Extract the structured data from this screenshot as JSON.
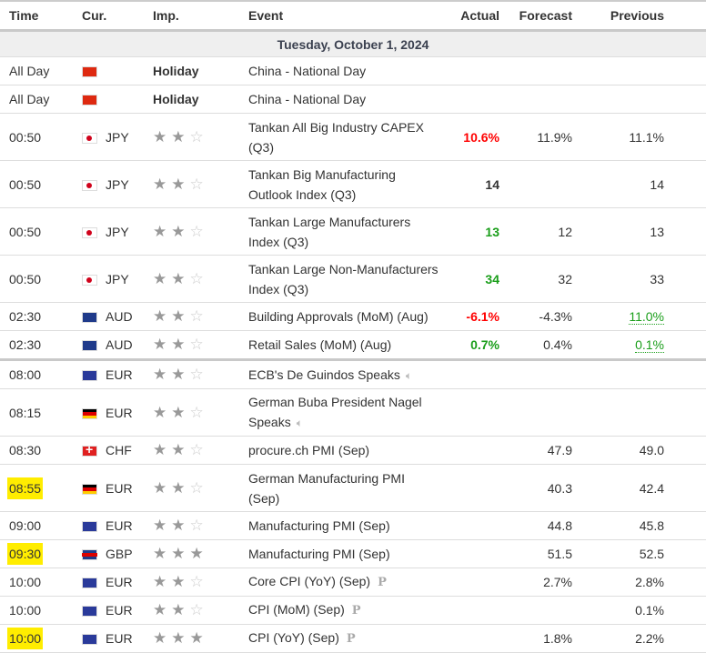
{
  "headers": {
    "time": "Time",
    "cur": "Cur.",
    "imp": "Imp.",
    "event": "Event",
    "actual": "Actual",
    "forecast": "Forecast",
    "previous": "Previous"
  },
  "date": "Tuesday, October 1, 2024",
  "colors": {
    "highlight": "#ffed00",
    "negative": "#ff0000",
    "positive": "#1a9e1a"
  },
  "rows": [
    {
      "time": "All Day",
      "flag": "cn",
      "cur": "",
      "imp_label": "Holiday",
      "event": "China - National Day",
      "actual": "",
      "forecast": "",
      "previous": ""
    },
    {
      "time": "All Day",
      "flag": "cn",
      "cur": "",
      "imp_label": "Holiday",
      "event": "China - National Day",
      "actual": "",
      "forecast": "",
      "previous": ""
    },
    {
      "time": "00:50",
      "flag": "jp",
      "cur": "JPY",
      "stars": 2,
      "event": "Tankan All Big Industry CAPEX (Q3)",
      "actual": "10.6%",
      "actual_color": "red",
      "forecast": "11.9%",
      "previous": "11.1%",
      "tall": true
    },
    {
      "time": "00:50",
      "flag": "jp",
      "cur": "JPY",
      "stars": 2,
      "event": "Tankan Big Manufacturing Outlook Index (Q3)",
      "actual": "14",
      "actual_color": "bold",
      "forecast": "",
      "previous": "14",
      "tall": true
    },
    {
      "time": "00:50",
      "flag": "jp",
      "cur": "JPY",
      "stars": 2,
      "event": "Tankan Large Manufacturers Index (Q3)",
      "actual": "13",
      "actual_color": "green",
      "forecast": "12",
      "previous": "13",
      "tall": true
    },
    {
      "time": "00:50",
      "flag": "jp",
      "cur": "JPY",
      "stars": 2,
      "event": "Tankan Large Non-Manufacturers Index (Q3)",
      "actual": "34",
      "actual_color": "green",
      "forecast": "32",
      "previous": "33",
      "tall": true
    },
    {
      "time": "02:30",
      "flag": "au",
      "cur": "AUD",
      "stars": 2,
      "event": "Building Approvals (MoM) (Aug)",
      "actual": "-6.1%",
      "actual_color": "red",
      "forecast": "-4.3%",
      "previous": "11.0%",
      "prev_revised": true
    },
    {
      "time": "02:30",
      "flag": "au",
      "cur": "AUD",
      "stars": 2,
      "event": "Retail Sales (MoM) (Aug)",
      "actual": "0.7%",
      "actual_color": "green",
      "forecast": "0.4%",
      "previous": "0.1%",
      "prev_revised": true,
      "sep": true
    },
    {
      "time": "08:00",
      "flag": "eu",
      "cur": "EUR",
      "stars": 2,
      "event": "ECB's De Guindos Speaks",
      "speech": true,
      "actual": "",
      "forecast": "",
      "previous": ""
    },
    {
      "time": "08:15",
      "flag": "de",
      "cur": "EUR",
      "stars": 2,
      "event": "German Buba President Nagel Speaks",
      "speech": true,
      "actual": "",
      "forecast": "",
      "previous": "",
      "tall": true
    },
    {
      "time": "08:30",
      "flag": "ch",
      "cur": "CHF",
      "stars": 2,
      "event": "procure.ch PMI (Sep)",
      "actual": "",
      "forecast": "47.9",
      "previous": "49.0"
    },
    {
      "time": "08:55",
      "flag": "de",
      "cur": "EUR",
      "stars": 2,
      "event": "German Manufacturing PMI (Sep)",
      "actual": "",
      "forecast": "40.3",
      "previous": "42.4",
      "tall": true,
      "highlight": true
    },
    {
      "time": "09:00",
      "flag": "eu",
      "cur": "EUR",
      "stars": 2,
      "event": "Manufacturing PMI (Sep)",
      "actual": "",
      "forecast": "44.8",
      "previous": "45.8"
    },
    {
      "time": "09:30",
      "flag": "gb",
      "cur": "GBP",
      "stars": 3,
      "event": "Manufacturing PMI (Sep)",
      "actual": "",
      "forecast": "51.5",
      "previous": "52.5",
      "highlight": true
    },
    {
      "time": "10:00",
      "flag": "eu",
      "cur": "EUR",
      "stars": 2,
      "event": "Core CPI (YoY) (Sep)",
      "prelim": "P",
      "actual": "",
      "forecast": "2.7%",
      "previous": "2.8%"
    },
    {
      "time": "10:00",
      "flag": "eu",
      "cur": "EUR",
      "stars": 2,
      "event": "CPI (MoM) (Sep)",
      "prelim": "P",
      "actual": "",
      "forecast": "",
      "previous": "0.1%"
    },
    {
      "time": "10:00",
      "flag": "eu",
      "cur": "EUR",
      "stars": 3,
      "event": "CPI (YoY) (Sep)",
      "prelim": "P",
      "actual": "",
      "forecast": "1.8%",
      "previous": "2.2%",
      "highlight": true
    }
  ]
}
